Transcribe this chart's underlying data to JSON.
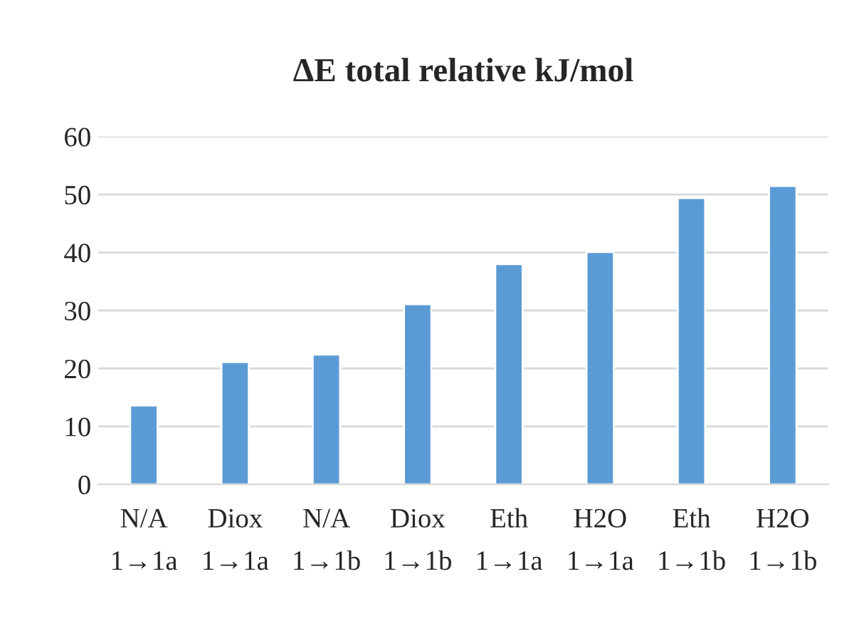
{
  "chart_data": {
    "type": "bar",
    "title": "ΔE total relative kJ/mol",
    "categories": [
      "N/A\n1→1a",
      "Diox\n1→1a",
      "N/A\n1→1b",
      "Diox\n1→1b",
      "Eth\n1→1a",
      "H2O\n1→1a",
      "Eth\n1→1b",
      "H2O\n1→1b"
    ],
    "values": [
      13.6,
      21.1,
      22.4,
      31.1,
      38.0,
      40.1,
      49.4,
      51.5
    ],
    "color": "#5b9bd5",
    "ylim": [
      0,
      60
    ],
    "yticks": [
      0,
      10,
      20,
      30,
      40,
      50,
      60
    ],
    "grid": "y"
  }
}
